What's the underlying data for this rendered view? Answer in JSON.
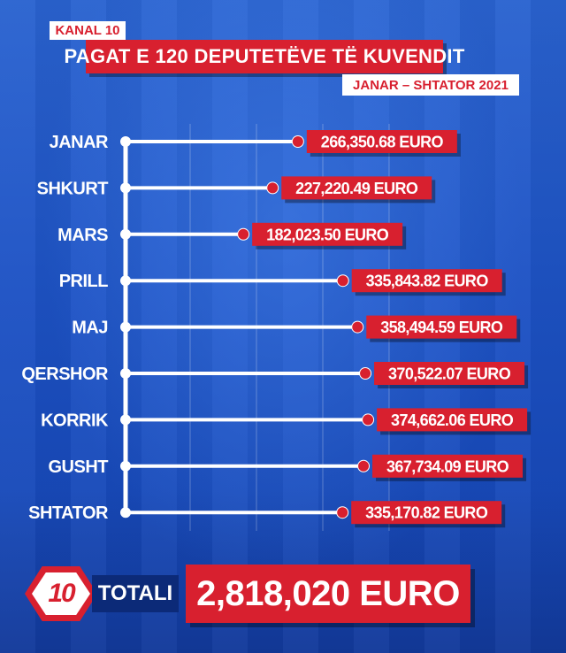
{
  "header": {
    "channel": "KANAL 10",
    "title": "PAGAT E 120 DEPUTETËVE TË KUVENDIT",
    "subtitle": "JANAR – SHTATOR 2021"
  },
  "chart_data": {
    "type": "bar",
    "orientation": "horizontal",
    "title": "PAGAT E 120 DEPUTETËVE TË KUVENDIT",
    "subtitle": "JANAR – SHTATOR 2021",
    "categories": [
      "JANAR",
      "SHKURT",
      "MARS",
      "PRILL",
      "MAJ",
      "QERSHOR",
      "KORRIK",
      "GUSHT",
      "SHTATOR"
    ],
    "values": [
      266350.68,
      227220.49,
      182023.5,
      335843.82,
      358494.59,
      370522.07,
      374662.06,
      367734.09,
      335170.82
    ],
    "value_labels": [
      "266,350.68 EURO",
      "227,220.49 EURO",
      "182,023.50 EURO",
      "335,843.82 EURO",
      "358,494.59 EURO",
      "370,522.07 EURO",
      "374,662.06 EURO",
      "367,734.09 EURO",
      "335,170.82 EURO"
    ],
    "unit": "EURO",
    "xlim": [
      0,
      380000
    ],
    "grid": true,
    "colors": {
      "bar": "#ffffff",
      "label_bg": "#d8202f",
      "label_text": "#ffffff"
    }
  },
  "total": {
    "logo": "10",
    "label": "TOTALI",
    "value": "2,818,020 EURO"
  },
  "colors": {
    "brand_red": "#d8202f",
    "background_blue": "#1d52c4",
    "dark_blue": "#0c2a78"
  }
}
